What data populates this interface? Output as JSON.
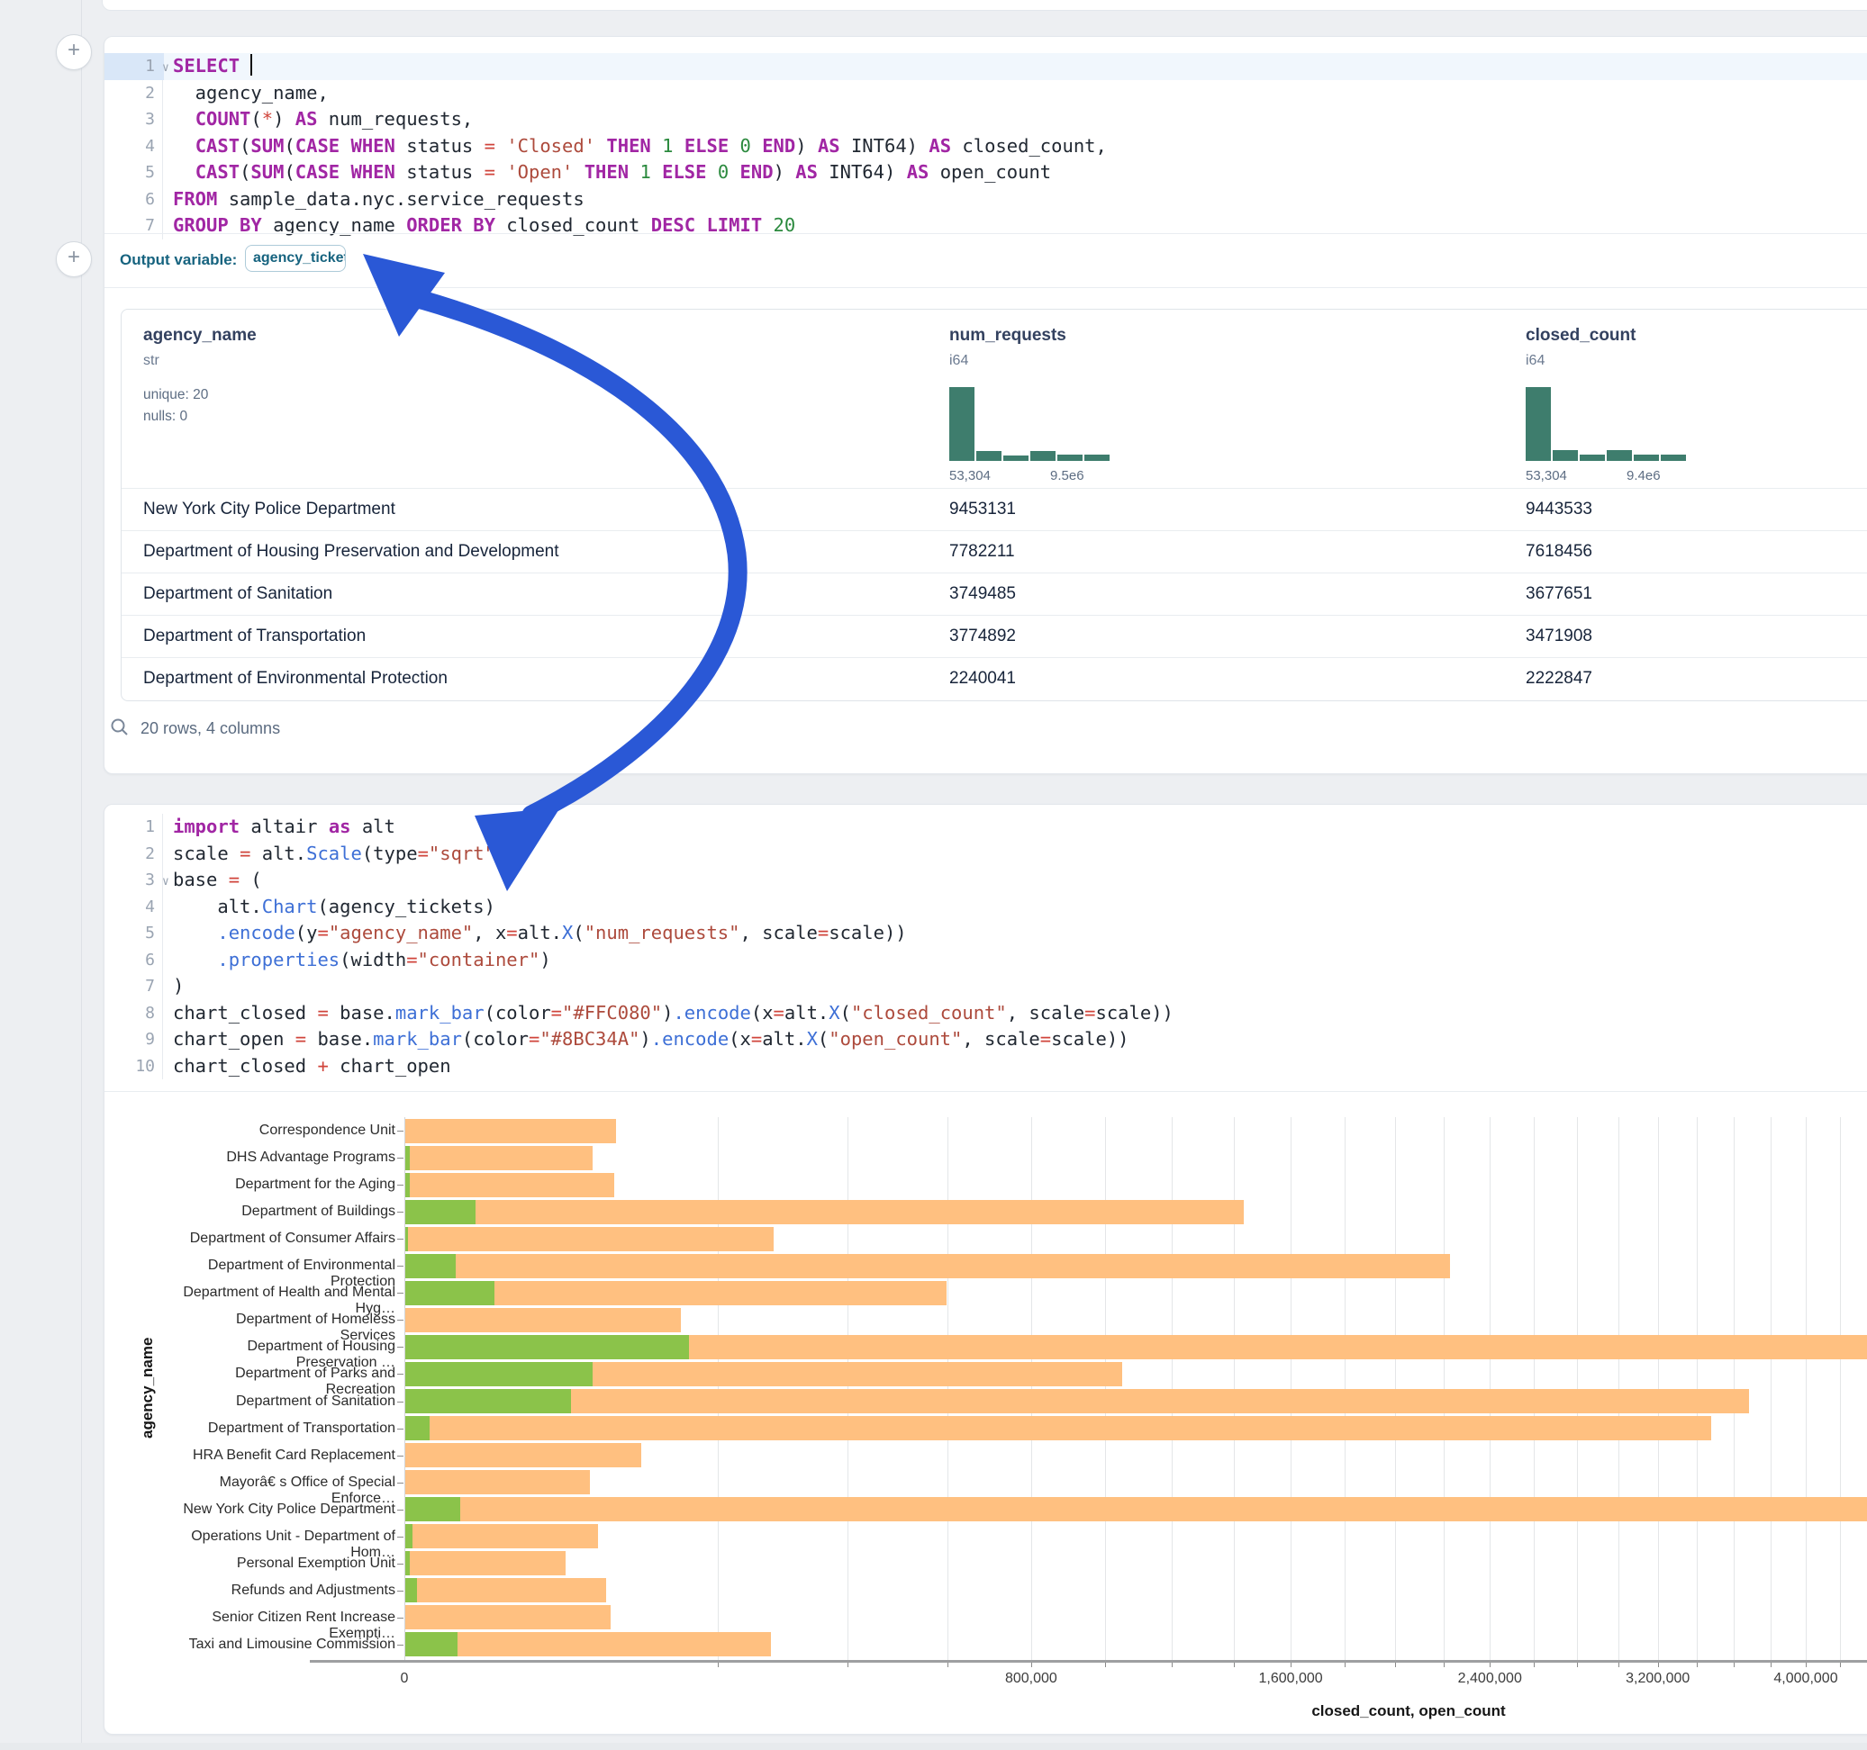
{
  "colors": {
    "arrow_blue": "#2a58d6",
    "hist_teal": "#3e7d6d",
    "closed_bar": "#FFC080",
    "open_bar": "#8BC34A",
    "keyword": "#a126a4",
    "string": "#ad4a3c",
    "number": "#2b8a3e",
    "function": "#3d6fd6"
  },
  "sql_cell": {
    "lines": [
      {
        "n": "1",
        "fold": true,
        "active": true,
        "tokens": [
          [
            "k",
            "SELECT"
          ],
          [
            "d",
            " "
          ],
          [
            "cur",
            ""
          ]
        ]
      },
      {
        "n": "2",
        "tokens": [
          [
            "d",
            "  agency_name,"
          ]
        ]
      },
      {
        "n": "3",
        "tokens": [
          [
            "d",
            "  "
          ],
          [
            "k",
            "COUNT"
          ],
          [
            "d",
            "("
          ],
          [
            "o",
            "*"
          ],
          [
            "d",
            ") "
          ],
          [
            "k",
            "AS"
          ],
          [
            "d",
            " num_requests,"
          ]
        ]
      },
      {
        "n": "4",
        "tokens": [
          [
            "d",
            "  "
          ],
          [
            "k",
            "CAST"
          ],
          [
            "d",
            "("
          ],
          [
            "k",
            "SUM"
          ],
          [
            "d",
            "("
          ],
          [
            "k",
            "CASE"
          ],
          [
            "d",
            " "
          ],
          [
            "k",
            "WHEN"
          ],
          [
            "d",
            " status "
          ],
          [
            "o",
            "="
          ],
          [
            "d",
            " "
          ],
          [
            "s",
            "'Closed'"
          ],
          [
            "d",
            " "
          ],
          [
            "k",
            "THEN"
          ],
          [
            "d",
            " "
          ],
          [
            "n",
            "1"
          ],
          [
            "d",
            " "
          ],
          [
            "k",
            "ELSE"
          ],
          [
            "d",
            " "
          ],
          [
            "n",
            "0"
          ],
          [
            "d",
            " "
          ],
          [
            "k",
            "END"
          ],
          [
            "d",
            ") "
          ],
          [
            "k",
            "AS"
          ],
          [
            "d",
            " INT64) "
          ],
          [
            "k",
            "AS"
          ],
          [
            "d",
            " closed_count,"
          ]
        ]
      },
      {
        "n": "5",
        "tokens": [
          [
            "d",
            "  "
          ],
          [
            "k",
            "CAST"
          ],
          [
            "d",
            "("
          ],
          [
            "k",
            "SUM"
          ],
          [
            "d",
            "("
          ],
          [
            "k",
            "CASE"
          ],
          [
            "d",
            " "
          ],
          [
            "k",
            "WHEN"
          ],
          [
            "d",
            " status "
          ],
          [
            "o",
            "="
          ],
          [
            "d",
            " "
          ],
          [
            "s",
            "'Open'"
          ],
          [
            "d",
            " "
          ],
          [
            "k",
            "THEN"
          ],
          [
            "d",
            " "
          ],
          [
            "n",
            "1"
          ],
          [
            "d",
            " "
          ],
          [
            "k",
            "ELSE"
          ],
          [
            "d",
            " "
          ],
          [
            "n",
            "0"
          ],
          [
            "d",
            " "
          ],
          [
            "k",
            "END"
          ],
          [
            "d",
            ") "
          ],
          [
            "k",
            "AS"
          ],
          [
            "d",
            " INT64) "
          ],
          [
            "k",
            "AS"
          ],
          [
            "d",
            " open_count"
          ]
        ]
      },
      {
        "n": "6",
        "tokens": [
          [
            "k",
            "FROM"
          ],
          [
            "d",
            " sample_data.nyc.service_requests"
          ]
        ]
      },
      {
        "n": "7",
        "tokens": [
          [
            "k",
            "GROUP BY"
          ],
          [
            "d",
            " agency_name "
          ],
          [
            "k",
            "ORDER BY"
          ],
          [
            "d",
            " closed_count "
          ],
          [
            "k",
            "DESC"
          ],
          [
            "d",
            " "
          ],
          [
            "k",
            "LIMIT"
          ],
          [
            "d",
            " "
          ],
          [
            "n",
            "20"
          ]
        ]
      }
    ]
  },
  "output_bar": {
    "label": "Output variable:",
    "pill": "agency_tickets"
  },
  "table": {
    "columns": [
      {
        "name": "agency_name",
        "type": "str",
        "stats": [
          "unique: 20",
          "nulls: 0"
        ],
        "x": 24
      },
      {
        "name": "num_requests",
        "type": "i64",
        "x": 919,
        "hist": {
          "bins": [
            100,
            14,
            7,
            14,
            8,
            8
          ],
          "label_min": "53,304",
          "label_max": "9.5e6"
        }
      },
      {
        "name": "closed_count",
        "type": "i64",
        "x": 1559,
        "hist": {
          "bins": [
            100,
            15,
            8,
            15,
            8,
            8
          ],
          "label_min": "53,304",
          "label_max": "9.4e6"
        }
      }
    ],
    "rows": [
      [
        "New York City Police Department",
        "9453131",
        "9443533"
      ],
      [
        "Department of Housing Preservation and Development",
        "7782211",
        "7618456"
      ],
      [
        "Department of Sanitation",
        "3749485",
        "3677651"
      ],
      [
        "Department of Transportation",
        "3774892",
        "3471908"
      ],
      [
        "Department of Environmental Protection",
        "2240041",
        "2222847"
      ]
    ],
    "footer": "20 rows, 4 columns"
  },
  "python_cell": {
    "lines": [
      {
        "n": "1",
        "tokens": [
          [
            "k",
            "import"
          ],
          [
            "d",
            " altair "
          ],
          [
            "k",
            "as"
          ],
          [
            "d",
            " alt"
          ]
        ]
      },
      {
        "n": "2",
        "tokens": [
          [
            "d",
            "scale "
          ],
          [
            "o",
            "="
          ],
          [
            "d",
            " alt."
          ],
          [
            "f",
            "Scale"
          ],
          [
            "d",
            "(type"
          ],
          [
            "o",
            "="
          ],
          [
            "s",
            "\"sqrt\""
          ],
          [
            "d",
            ")"
          ]
        ]
      },
      {
        "n": "3",
        "fold": true,
        "tokens": [
          [
            "d",
            "base "
          ],
          [
            "o",
            "="
          ],
          [
            "d",
            " ("
          ]
        ]
      },
      {
        "n": "4",
        "tokens": [
          [
            "d",
            "    alt."
          ],
          [
            "f",
            "Chart"
          ],
          [
            "d",
            "(agency_tickets)"
          ]
        ]
      },
      {
        "n": "5",
        "tokens": [
          [
            "d",
            "    "
          ],
          [
            "f",
            ".encode"
          ],
          [
            "d",
            "(y"
          ],
          [
            "o",
            "="
          ],
          [
            "s",
            "\"agency_name\""
          ],
          [
            "d",
            ", x"
          ],
          [
            "o",
            "="
          ],
          [
            "d",
            "alt."
          ],
          [
            "f",
            "X"
          ],
          [
            "d",
            "("
          ],
          [
            "s",
            "\"num_requests\""
          ],
          [
            "d",
            ", scale"
          ],
          [
            "o",
            "="
          ],
          [
            "d",
            "scale))"
          ]
        ]
      },
      {
        "n": "6",
        "tokens": [
          [
            "d",
            "    "
          ],
          [
            "f",
            ".properties"
          ],
          [
            "d",
            "(width"
          ],
          [
            "o",
            "="
          ],
          [
            "s",
            "\"container\""
          ],
          [
            "d",
            ")"
          ]
        ]
      },
      {
        "n": "7",
        "tokens": [
          [
            "d",
            ")"
          ]
        ]
      },
      {
        "n": "8",
        "tokens": [
          [
            "d",
            "chart_closed "
          ],
          [
            "o",
            "="
          ],
          [
            "d",
            " base."
          ],
          [
            "f",
            "mark_bar"
          ],
          [
            "d",
            "(color"
          ],
          [
            "o",
            "="
          ],
          [
            "s",
            "\"#FFC080\""
          ],
          [
            "d",
            ")"
          ],
          [
            "f",
            ".encode"
          ],
          [
            "d",
            "(x"
          ],
          [
            "o",
            "="
          ],
          [
            "d",
            "alt."
          ],
          [
            "f",
            "X"
          ],
          [
            "d",
            "("
          ],
          [
            "s",
            "\"closed_count\""
          ],
          [
            "d",
            ", scale"
          ],
          [
            "o",
            "="
          ],
          [
            "d",
            "scale))"
          ]
        ]
      },
      {
        "n": "9",
        "tokens": [
          [
            "d",
            "chart_open "
          ],
          [
            "o",
            "="
          ],
          [
            "d",
            " base."
          ],
          [
            "f",
            "mark_bar"
          ],
          [
            "d",
            "(color"
          ],
          [
            "o",
            "="
          ],
          [
            "s",
            "\"#8BC34A\""
          ],
          [
            "d",
            ")"
          ],
          [
            "f",
            ".encode"
          ],
          [
            "d",
            "(x"
          ],
          [
            "o",
            "="
          ],
          [
            "d",
            "alt."
          ],
          [
            "f",
            "X"
          ],
          [
            "d",
            "("
          ],
          [
            "s",
            "\"open_count\""
          ],
          [
            "d",
            ", scale"
          ],
          [
            "o",
            "="
          ],
          [
            "d",
            "scale))"
          ]
        ]
      },
      {
        "n": "10",
        "tokens": [
          [
            "d",
            "chart_closed "
          ],
          [
            "o",
            "+"
          ],
          [
            "d",
            " chart_open"
          ]
        ]
      }
    ]
  },
  "chart_data": {
    "type": "bar",
    "orientation": "horizontal",
    "scale": "sqrt",
    "xlabel": "closed_count, open_count",
    "ylabel": "agency_name",
    "x_ticks": [
      0,
      800000,
      1600000,
      2400000,
      3200000,
      4000000
    ],
    "x_tick_labels": [
      "0",
      "800,000",
      "1,600,000",
      "2,400,000",
      "3,200,000",
      "4,000,000"
    ],
    "gridline_step": 200000,
    "gridline_max": 4400000,
    "legend": "none",
    "categories": [
      "Correspondence Unit",
      "DHS Advantage Programs",
      "Department for the Aging",
      "Department of Buildings",
      "Department of Consumer Affairs",
      "Department of Environmental Protection",
      "Department of Health and Mental Hyg…",
      "Department of Homeless Services",
      "Department of Housing Preservation …",
      "Department of Parks and Recreation",
      "Department of Sanitation",
      "Department of Transportation",
      "HRA Benefit Card Replacement",
      "Mayorâ€ s Office of Special Enforce…",
      "New York City Police Department",
      "Operations Unit - Department of Hom…",
      "Personal Exemption Unit",
      "Refunds and Adjustments",
      "Senior Citizen Rent Increase Exempti…",
      "Taxi and Limousine Commission"
    ],
    "series": [
      {
        "name": "closed_count",
        "color": "#FFC080",
        "values": [
          90500,
          71500,
          88600,
          1432000,
          277000,
          2222847,
          597000,
          155000,
          7618456,
          1047000,
          3677651,
          3471908,
          113000,
          69400,
          9443533,
          75500,
          52300,
          82000,
          86000,
          272000
        ]
      },
      {
        "name": "open_count",
        "color": "#8BC34A",
        "values": [
          0,
          40,
          40,
          10100,
          15,
          5100,
          16200,
          0,
          163900,
          71500,
          55800,
          1200,
          0,
          0,
          6100,
          100,
          40,
          280,
          0,
          5600
        ]
      }
    ]
  }
}
